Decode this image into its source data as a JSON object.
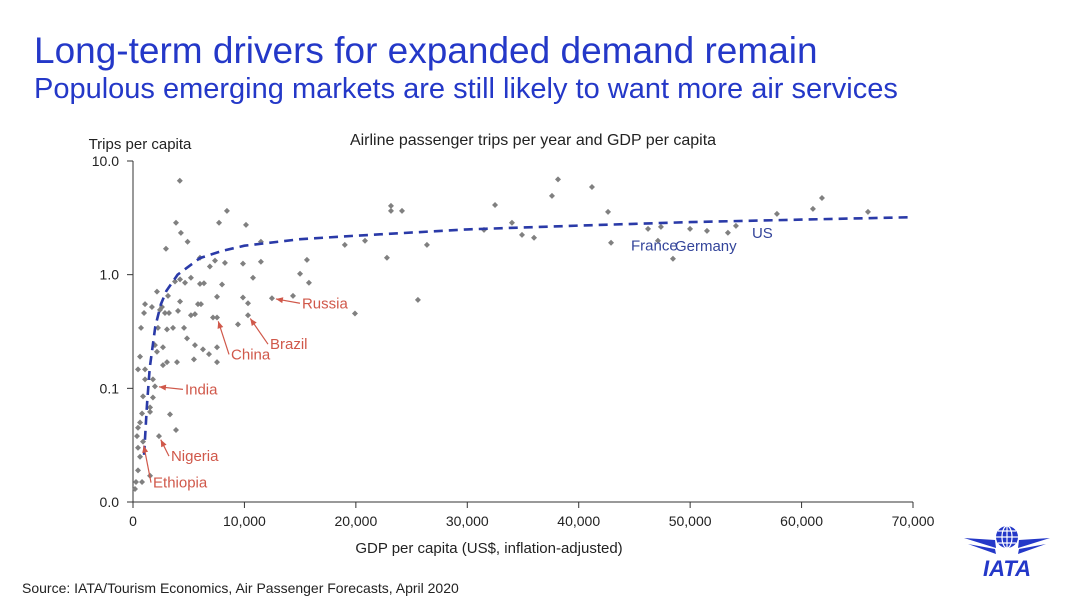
{
  "header": {
    "title": "Long-term drivers for expanded demand remain",
    "subtitle": "Populous emerging markets are still likely to want more air services"
  },
  "footer": {
    "source": "Source: IATA/Tourism Economics, Air Passenger Forecasts, April 2020",
    "logo_text": "IATA"
  },
  "colors": {
    "accent": "#2438c8",
    "points": "#808080",
    "trend": "#2a3aa8",
    "emerging": "#d0584a",
    "developed": "#33449a"
  },
  "chart_data": {
    "type": "scatter",
    "title": "Airline passenger trips per year and GDP per capita",
    "xlabel": "GDP per capita (US$, inflation-adjusted)",
    "ylabel": "Trips per capita",
    "xlim": [
      0,
      70000
    ],
    "ylim": [
      0.01,
      10
    ],
    "yscale": "log",
    "xticks": [
      0,
      10000,
      20000,
      30000,
      40000,
      50000,
      60000,
      70000
    ],
    "xtick_labels": [
      "0",
      "10,000",
      "20,000",
      "30,000",
      "40,000",
      "50,000",
      "60,000",
      "70,000"
    ],
    "yticks": [
      0.01,
      0.1,
      1,
      10
    ],
    "ytick_labels": [
      "0.0",
      "0.1",
      "1.0",
      "10.0"
    ],
    "points": [
      [
        4200,
        6.7
      ],
      [
        3860,
        2.86
      ],
      [
        4300,
        2.33
      ],
      [
        4900,
        1.95
      ],
      [
        2960,
        1.69
      ],
      [
        8430,
        3.64
      ],
      [
        7720,
        2.86
      ],
      [
        10140,
        2.74
      ],
      [
        11480,
        1.95
      ],
      [
        6010,
        1.41
      ],
      [
        6900,
        1.18
      ],
      [
        7360,
        1.33
      ],
      [
        8250,
        1.27
      ],
      [
        9870,
        1.25
      ],
      [
        11480,
        1.3
      ],
      [
        10770,
        0.94
      ],
      [
        14990,
        1.02
      ],
      [
        15610,
        1.35
      ],
      [
        15790,
        0.85
      ],
      [
        14360,
        0.65
      ],
      [
        12470,
        0.62
      ],
      [
        9870,
        0.63
      ],
      [
        10320,
        0.56
      ],
      [
        10320,
        0.44
      ],
      [
        9420,
        0.365
      ],
      [
        19920,
        0.455
      ],
      [
        7540,
        0.42
      ],
      [
        7180,
        0.42
      ],
      [
        7990,
        0.82
      ],
      [
        7540,
        0.64
      ],
      [
        6010,
        0.83
      ],
      [
        6370,
        0.84
      ],
      [
        5830,
        0.55
      ],
      [
        6100,
        0.55
      ],
      [
        5200,
        0.44
      ],
      [
        5560,
        0.45
      ],
      [
        4670,
        0.85
      ],
      [
        5200,
        0.94
      ],
      [
        4220,
        0.58
      ],
      [
        4040,
        0.48
      ],
      [
        3230,
        0.46
      ],
      [
        2870,
        0.46
      ],
      [
        2420,
        0.49
      ],
      [
        3590,
        0.34
      ],
      [
        3050,
        0.33
      ],
      [
        2240,
        0.34
      ],
      [
        4580,
        0.34
      ],
      [
        4850,
        0.275
      ],
      [
        5560,
        0.24
      ],
      [
        6280,
        0.22
      ],
      [
        6820,
        0.2
      ],
      [
        7540,
        0.23
      ],
      [
        7540,
        0.17
      ],
      [
        5470,
        0.18
      ],
      [
        3950,
        0.17
      ],
      [
        3050,
        0.17
      ],
      [
        2690,
        0.16
      ],
      [
        2690,
        0.23
      ],
      [
        2150,
        0.21
      ],
      [
        1970,
        0.24
      ],
      [
        2150,
        0.71
      ],
      [
        3140,
        0.65
      ],
      [
        2600,
        0.52
      ],
      [
        4220,
        0.91
      ],
      [
        3770,
        0.87
      ],
      [
        1700,
        0.52
      ],
      [
        1080,
        0.55
      ],
      [
        990,
        0.46
      ],
      [
        720,
        0.34
      ],
      [
        630,
        0.19
      ],
      [
        450,
        0.147
      ],
      [
        1080,
        0.147
      ],
      [
        1080,
        0.12
      ],
      [
        1790,
        0.12
      ],
      [
        1970,
        0.104
      ],
      [
        1790,
        0.083
      ],
      [
        900,
        0.085
      ],
      [
        1530,
        0.068
      ],
      [
        1530,
        0.062
      ],
      [
        810,
        0.06
      ],
      [
        3320,
        0.059
      ],
      [
        630,
        0.05
      ],
      [
        450,
        0.045
      ],
      [
        3860,
        0.043
      ],
      [
        2330,
        0.038
      ],
      [
        360,
        0.038
      ],
      [
        900,
        0.034
      ],
      [
        450,
        0.03
      ],
      [
        630,
        0.025
      ],
      [
        450,
        0.019
      ],
      [
        270,
        0.015
      ],
      [
        810,
        0.015
      ],
      [
        1530,
        0.017
      ],
      [
        180,
        0.013
      ],
      [
        19010,
        1.83
      ],
      [
        20820,
        1.99
      ],
      [
        22790,
        1.41
      ],
      [
        23150,
        4.03
      ],
      [
        23150,
        3.64
      ],
      [
        24140,
        3.64
      ],
      [
        26380,
        1.83
      ],
      [
        25570,
        0.6
      ],
      [
        31500,
        2.48
      ],
      [
        32490,
        4.1
      ],
      [
        34010,
        2.86
      ],
      [
        34910,
        2.24
      ],
      [
        35990,
        2.11
      ],
      [
        37600,
        4.93
      ],
      [
        38140,
        6.9
      ],
      [
        41190,
        5.9
      ],
      [
        42630,
        3.57
      ],
      [
        42900,
        1.91
      ],
      [
        46220,
        2.53
      ],
      [
        47380,
        2.63
      ],
      [
        47110,
        1.99
      ],
      [
        48460,
        1.38
      ],
      [
        49990,
        2.53
      ],
      [
        51510,
        2.43
      ],
      [
        53390,
        2.34
      ],
      [
        54110,
        2.69
      ],
      [
        57790,
        3.43
      ],
      [
        61020,
        3.79
      ],
      [
        61830,
        4.73
      ],
      [
        65960,
        3.57
      ]
    ],
    "trend_line": [
      [
        1000,
        0.026
      ],
      [
        1100,
        0.04
      ],
      [
        1250,
        0.07
      ],
      [
        1500,
        0.15
      ],
      [
        2000,
        0.35
      ],
      [
        2500,
        0.55
      ],
      [
        3000,
        0.72
      ],
      [
        4000,
        1.0
      ],
      [
        6000,
        1.4
      ],
      [
        8000,
        1.62
      ],
      [
        10000,
        1.8
      ],
      [
        15000,
        2.05
      ],
      [
        20000,
        2.2
      ],
      [
        30000,
        2.5
      ],
      [
        40000,
        2.7
      ],
      [
        50000,
        2.9
      ],
      [
        60000,
        3.05
      ],
      [
        70000,
        3.2
      ]
    ],
    "annotations": [
      {
        "label": "Russia",
        "group": "emerging",
        "target": [
          12470,
          0.62
        ],
        "arrow": true
      },
      {
        "label": "Brazil",
        "group": "emerging",
        "target": [
          10320,
          0.44
        ],
        "arrow": true
      },
      {
        "label": "China",
        "group": "emerging",
        "target": [
          7540,
          0.42
        ],
        "arrow": true
      },
      {
        "label": "India",
        "group": "emerging",
        "target": [
          1970,
          0.104
        ],
        "arrow": true
      },
      {
        "label": "Nigeria",
        "group": "emerging",
        "target": [
          2330,
          0.038
        ],
        "arrow": true
      },
      {
        "label": "Ethiopia",
        "group": "emerging",
        "target": [
          900,
          0.034
        ],
        "arrow": true
      },
      {
        "label": "France",
        "group": "developed",
        "target": [
          42900,
          1.91
        ],
        "arrow": false
      },
      {
        "label": "Germany",
        "group": "developed",
        "target": [
          48460,
          1.38
        ],
        "arrow": false
      },
      {
        "label": "US",
        "group": "developed",
        "target": [
          54110,
          2.69
        ],
        "arrow": false
      }
    ]
  }
}
